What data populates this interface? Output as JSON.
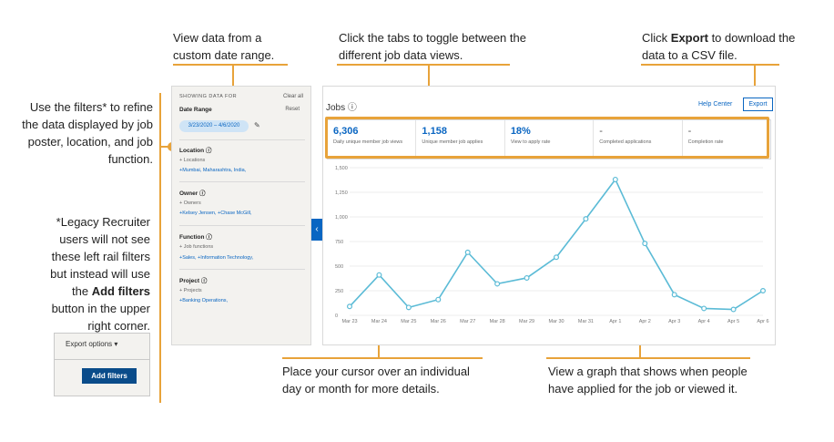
{
  "callouts": {
    "date_range": "View data from a custom date range.",
    "tabs": "Click the tabs to toggle between the different job data views.",
    "export_pre": "Click ",
    "export_bold": "Export",
    "export_post": " to download the data to a CSV file.",
    "filters": "Use the filters* to refine the data displayed by job poster, location, and job function.",
    "legacy_pre": "*Legacy Recruiter users will not see these left rail filters but instead will use the ",
    "legacy_bold": "Add filters",
    "legacy_post": " button in the upper right corner.",
    "cursor": "Place your cursor over an individual day or month for more details.",
    "graph": "View a graph that shows when people have applied for the job or viewed it."
  },
  "sidebar": {
    "showing": "SHOWING DATA FOR",
    "clear_all": "Clear all",
    "reset": "Reset",
    "date_range_label": "Date Range",
    "date_range_value": "3/23/2020 – 4/6/2020",
    "sections": [
      {
        "title": "Location ⓘ",
        "add": "+ Locations",
        "values": "+Mumbai, Maharashtra, India,"
      },
      {
        "title": "Owner ⓘ",
        "add": "+ Owners",
        "values": "+Kelsey Jensen, +Chase McGill,"
      },
      {
        "title": "Function ⓘ",
        "add": "+ Job functions",
        "values": "+Sales, +Information Technology,"
      },
      {
        "title": "Project ⓘ",
        "add": "+ Projects",
        "values": "+Banking Operations,"
      }
    ]
  },
  "main": {
    "title": "Jobs ⓘ",
    "help_center": "Help Center",
    "export": "Export",
    "tabs": [
      {
        "value": "6,306",
        "label": "Daily unique member job views"
      },
      {
        "value": "1,158",
        "label": "Unique member job applies"
      },
      {
        "value": "18%",
        "label": "View to apply rate"
      },
      {
        "value": "-",
        "label": "Completed applications"
      },
      {
        "value": "-",
        "label": "Completion rate"
      }
    ]
  },
  "legacy_ui": {
    "export_options": "Export options ▾",
    "add_filters": "Add filters"
  },
  "colors": {
    "accent": "#0a66c2",
    "callout": "#e8a33a",
    "line": "#5bbbd6"
  },
  "chart_data": {
    "type": "line",
    "categories": [
      "Mar 23",
      "Mar 24",
      "Mar 25",
      "Mar 26",
      "Mar 27",
      "Mar 28",
      "Mar 29",
      "Mar 30",
      "Mar 31",
      "Apr 1",
      "Apr 2",
      "Apr 3",
      "Apr 4",
      "Apr 5",
      "Apr 6"
    ],
    "values": [
      90,
      410,
      80,
      160,
      640,
      320,
      380,
      590,
      980,
      1380,
      730,
      210,
      70,
      60,
      250
    ],
    "yticks": [
      "0",
      "250",
      "500",
      "750",
      "1,000",
      "1,250",
      "1,500"
    ],
    "ylim": [
      0,
      1500
    ]
  }
}
